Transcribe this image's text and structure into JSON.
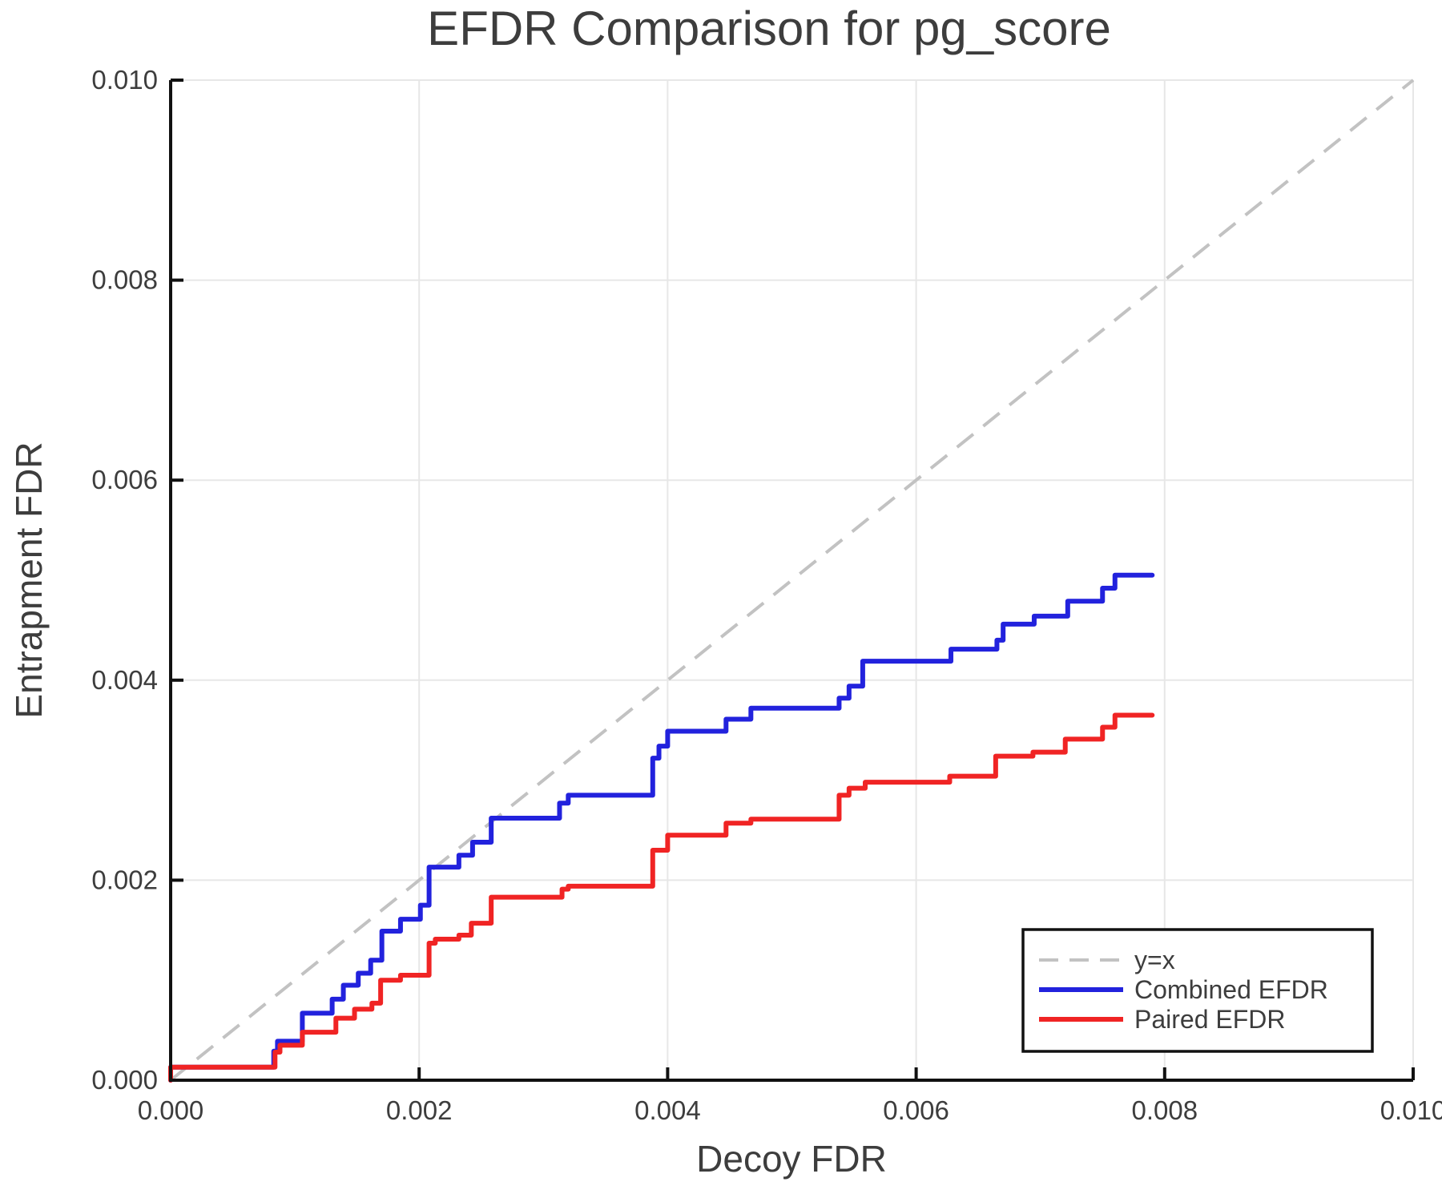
{
  "chart_data": {
    "type": "line",
    "title": "EFDR Comparison for pg_score",
    "xlabel": "Decoy FDR",
    "ylabel": "Entrapment FDR",
    "xlim": [
      0.0,
      0.01
    ],
    "ylim": [
      0.0,
      0.01
    ],
    "x_ticks": [
      0.0,
      0.002,
      0.004,
      0.006,
      0.008,
      0.01
    ],
    "y_ticks": [
      0.0,
      0.002,
      0.004,
      0.006,
      0.008,
      0.01
    ],
    "x_tick_labels": [
      "0.000",
      "0.002",
      "0.004",
      "0.006",
      "0.008",
      "0.010"
    ],
    "y_tick_labels": [
      "0.000",
      "0.002",
      "0.004",
      "0.006",
      "0.008",
      "0.010"
    ],
    "grid": true,
    "legend_position": "lower right",
    "colors": {
      "grid": "#e7e7e7",
      "axis": "#111111",
      "text": "#3d3d3d",
      "diagonal": "#c2c2c2",
      "combined": "#2222dd",
      "paired": "#f02424"
    },
    "series": [
      {
        "name": "y=x",
        "style": "dashed",
        "color_key": "diagonal",
        "points": [
          [
            0.0,
            0.0
          ],
          [
            0.01,
            0.01
          ]
        ]
      },
      {
        "name": "Combined EFDR",
        "style": "step",
        "color_key": "combined",
        "end_x": 0.0079,
        "steps": [
          [
            0.0,
            0.00013
          ],
          [
            0.00083,
            0.00029
          ],
          [
            0.00086,
            0.00039
          ],
          [
            0.00106,
            0.00067
          ],
          [
            0.0013,
            0.00081
          ],
          [
            0.00139,
            0.00095
          ],
          [
            0.00151,
            0.00107
          ],
          [
            0.00161,
            0.0012
          ],
          [
            0.0017,
            0.00149
          ],
          [
            0.00185,
            0.00161
          ],
          [
            0.00201,
            0.00175
          ],
          [
            0.00208,
            0.00213
          ],
          [
            0.00232,
            0.00225
          ],
          [
            0.00243,
            0.00238
          ],
          [
            0.00258,
            0.00262
          ],
          [
            0.00313,
            0.00277
          ],
          [
            0.0032,
            0.00285
          ],
          [
            0.00388,
            0.00322
          ],
          [
            0.00393,
            0.00334
          ],
          [
            0.004,
            0.00349
          ],
          [
            0.00447,
            0.00361
          ],
          [
            0.00467,
            0.00372
          ],
          [
            0.00538,
            0.00382
          ],
          [
            0.00546,
            0.00394
          ],
          [
            0.00557,
            0.00419
          ],
          [
            0.00628,
            0.00431
          ],
          [
            0.00665,
            0.0044
          ],
          [
            0.0067,
            0.00456
          ],
          [
            0.00695,
            0.00464
          ],
          [
            0.00722,
            0.00479
          ],
          [
            0.0075,
            0.00492
          ],
          [
            0.0076,
            0.00505
          ]
        ]
      },
      {
        "name": "Paired EFDR",
        "style": "step",
        "color_key": "paired",
        "end_x": 0.0079,
        "steps": [
          [
            0.0,
            0.00013
          ],
          [
            0.00084,
            0.00028
          ],
          [
            0.00088,
            0.00035
          ],
          [
            0.00106,
            0.00048
          ],
          [
            0.00133,
            0.00062
          ],
          [
            0.00148,
            0.00071
          ],
          [
            0.00162,
            0.00077
          ],
          [
            0.00169,
            0.001
          ],
          [
            0.00185,
            0.00105
          ],
          [
            0.00208,
            0.00137
          ],
          [
            0.00213,
            0.00141
          ],
          [
            0.00232,
            0.00145
          ],
          [
            0.00242,
            0.00157
          ],
          [
            0.00258,
            0.00183
          ],
          [
            0.00315,
            0.00191
          ],
          [
            0.0032,
            0.00194
          ],
          [
            0.00388,
            0.0023
          ],
          [
            0.004,
            0.00245
          ],
          [
            0.00447,
            0.00257
          ],
          [
            0.00467,
            0.00261
          ],
          [
            0.00538,
            0.00285
          ],
          [
            0.00546,
            0.00292
          ],
          [
            0.00559,
            0.00298
          ],
          [
            0.00627,
            0.00304
          ],
          [
            0.00664,
            0.00324
          ],
          [
            0.00694,
            0.00328
          ],
          [
            0.0072,
            0.00341
          ],
          [
            0.0075,
            0.00353
          ],
          [
            0.0076,
            0.00365
          ]
        ]
      }
    ]
  }
}
